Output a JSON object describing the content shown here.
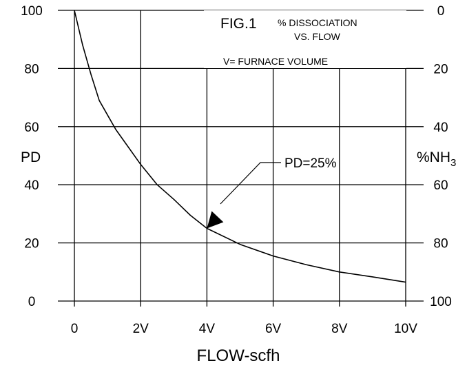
{
  "chart_data": {
    "type": "line",
    "title_main": "FIG.1",
    "title_line1": "% DISSOCIATION",
    "title_line2": "VS. FLOW",
    "legend_note": "V= FURNACE VOLUME",
    "xlabel": "FLOW-scfh",
    "ylabel_left": "PD",
    "ylabel_right_main": "%NH",
    "ylabel_right_sub": "3",
    "x_ticks": [
      "0",
      "2V",
      "4V",
      "6V",
      "8V",
      "10V"
    ],
    "y_ticks_left": [
      "0",
      "20",
      "40",
      "60",
      "80",
      "100"
    ],
    "y_ticks_right": [
      "100",
      "80",
      "60",
      "40",
      "20",
      "0"
    ],
    "xlim": [
      0,
      10
    ],
    "ylim": [
      0,
      100
    ],
    "grid": true,
    "series": [
      {
        "x": [
          0,
          0.25,
          0.5,
          0.75,
          1,
          1.25,
          1.5,
          2,
          2.5,
          3,
          3.5,
          4,
          5,
          6,
          7,
          8,
          9,
          10
        ],
        "y": [
          100,
          88,
          78,
          69,
          64,
          59,
          55,
          47,
          40,
          35,
          29.5,
          25,
          19.5,
          15.5,
          12.5,
          10,
          8.3,
          6.5
        ]
      }
    ],
    "annotation": {
      "text": "PD=25%",
      "point_x": 4,
      "point_y": 25
    }
  }
}
